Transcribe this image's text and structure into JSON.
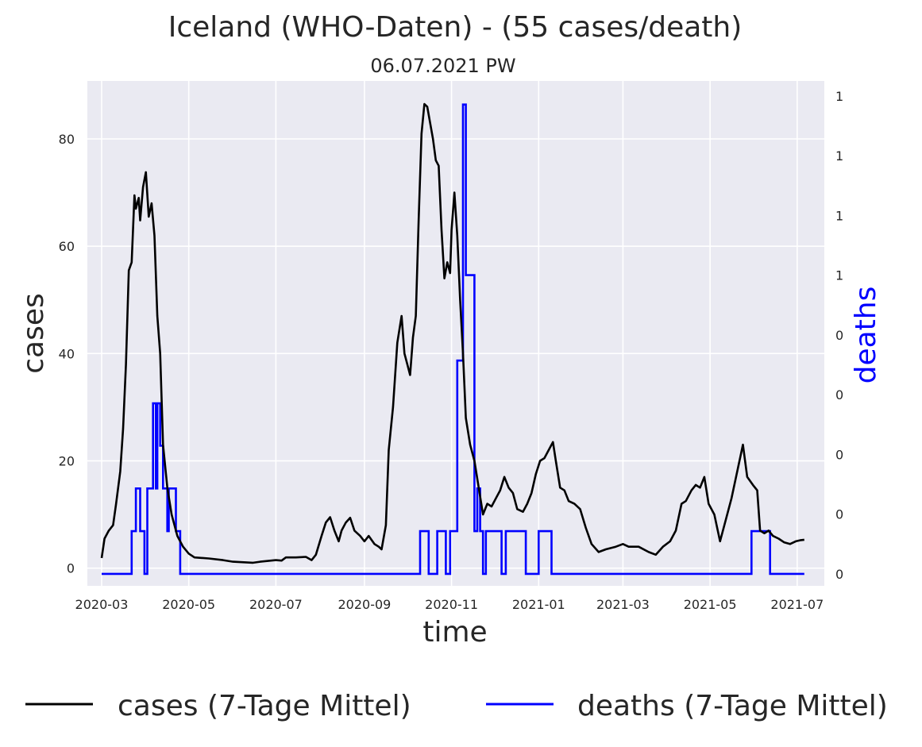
{
  "title": "Iceland (WHO-Daten) - (55 cases/death)",
  "subtitle": "06.07.2021 PW",
  "chart_data": {
    "type": "line",
    "xlabel": "time",
    "ylabel": "cases",
    "y2label": "deaths",
    "x_ticks": [
      "2020-03",
      "2020-05",
      "2020-07",
      "2020-09",
      "2020-11",
      "2021-01",
      "2021-03",
      "2021-05",
      "2021-07"
    ],
    "y_ticks": [
      "0",
      "20",
      "40",
      "60",
      "80"
    ],
    "y2_ticks": [
      "0",
      "0",
      "0",
      "0",
      "0",
      "1",
      "1",
      "1",
      "1"
    ],
    "xlim": [
      "2020-02-20",
      "2021-07-20"
    ],
    "ylim": [
      -3.3,
      90.8
    ],
    "y2lim": [
      -0.04,
      1.65
    ],
    "grid": true,
    "legend": {
      "placement": "bottom-center",
      "entries": [
        "cases (7-Tage Mittel)",
        "deaths (7-Tage Mittel)"
      ]
    },
    "series": [
      {
        "name": "cases (7-Tage Mittel)",
        "axis": "left",
        "color": "#000000",
        "points": [
          [
            "2020-03-01",
            1.9
          ],
          [
            "2020-03-03",
            5.5
          ],
          [
            "2020-03-06",
            7.0
          ],
          [
            "2020-03-09",
            8.0
          ],
          [
            "2020-03-11",
            11.8
          ],
          [
            "2020-03-14",
            18.0
          ],
          [
            "2020-03-16",
            26.0
          ],
          [
            "2020-03-18",
            38.0
          ],
          [
            "2020-03-20",
            55.5
          ],
          [
            "2020-03-22",
            57.0
          ],
          [
            "2020-03-24",
            69.5
          ],
          [
            "2020-03-25",
            67.0
          ],
          [
            "2020-03-27",
            69.0
          ],
          [
            "2020-03-28",
            64.8
          ],
          [
            "2020-03-30",
            71.0
          ],
          [
            "2020-04-01",
            73.8
          ],
          [
            "2020-04-03",
            65.5
          ],
          [
            "2020-04-05",
            68.0
          ],
          [
            "2020-04-07",
            62.0
          ],
          [
            "2020-04-09",
            47.0
          ],
          [
            "2020-04-11",
            40.0
          ],
          [
            "2020-04-13",
            23.0
          ],
          [
            "2020-04-16",
            15.0
          ],
          [
            "2020-04-19",
            10.0
          ],
          [
            "2020-04-23",
            6.0
          ],
          [
            "2020-04-27",
            4.0
          ],
          [
            "2020-05-01",
            2.7
          ],
          [
            "2020-05-05",
            2.0
          ],
          [
            "2020-05-15",
            1.8
          ],
          [
            "2020-05-25",
            1.5
          ],
          [
            "2020-06-01",
            1.2
          ],
          [
            "2020-06-15",
            1.0
          ],
          [
            "2020-06-20",
            1.2
          ],
          [
            "2020-07-01",
            1.5
          ],
          [
            "2020-07-05",
            1.4
          ],
          [
            "2020-07-08",
            2.0
          ],
          [
            "2020-07-15",
            2.0
          ],
          [
            "2020-07-22",
            2.1
          ],
          [
            "2020-07-26",
            1.5
          ],
          [
            "2020-07-29",
            2.5
          ],
          [
            "2020-08-02",
            6.0
          ],
          [
            "2020-08-05",
            8.5
          ],
          [
            "2020-08-08",
            9.5
          ],
          [
            "2020-08-11",
            7.0
          ],
          [
            "2020-08-14",
            5.0
          ],
          [
            "2020-08-16",
            7.0
          ],
          [
            "2020-08-19",
            8.5
          ],
          [
            "2020-08-22",
            9.4
          ],
          [
            "2020-08-25",
            7.0
          ],
          [
            "2020-08-29",
            6.0
          ],
          [
            "2020-09-01",
            5.0
          ],
          [
            "2020-09-04",
            6.0
          ],
          [
            "2020-09-08",
            4.5
          ],
          [
            "2020-09-11",
            4.0
          ],
          [
            "2020-09-13",
            3.5
          ],
          [
            "2020-09-16",
            8.0
          ],
          [
            "2020-09-18",
            22.0
          ],
          [
            "2020-09-21",
            30.0
          ],
          [
            "2020-09-24",
            42.0
          ],
          [
            "2020-09-27",
            47.0
          ],
          [
            "2020-09-29",
            40.0
          ],
          [
            "2020-10-01",
            38.0
          ],
          [
            "2020-10-03",
            36.0
          ],
          [
            "2020-10-05",
            43.0
          ],
          [
            "2020-10-07",
            47.0
          ],
          [
            "2020-10-09",
            65.0
          ],
          [
            "2020-10-11",
            81.0
          ],
          [
            "2020-10-13",
            86.5
          ],
          [
            "2020-10-15",
            86.0
          ],
          [
            "2020-10-17",
            83.0
          ],
          [
            "2020-10-19",
            80.0
          ],
          [
            "2020-10-21",
            76.0
          ],
          [
            "2020-10-23",
            75.0
          ],
          [
            "2020-10-25",
            63.0
          ],
          [
            "2020-10-27",
            54.0
          ],
          [
            "2020-10-29",
            57.0
          ],
          [
            "2020-10-31",
            55.0
          ],
          [
            "2020-11-01",
            63.0
          ],
          [
            "2020-11-03",
            70.0
          ],
          [
            "2020-11-05",
            62.0
          ],
          [
            "2020-11-07",
            50.0
          ],
          [
            "2020-11-09",
            40.0
          ],
          [
            "2020-11-11",
            28.0
          ],
          [
            "2020-11-14",
            23.0
          ],
          [
            "2020-11-17",
            20.0
          ],
          [
            "2020-11-20",
            15.0
          ],
          [
            "2020-11-23",
            10.0
          ],
          [
            "2020-11-26",
            12.0
          ],
          [
            "2020-11-29",
            11.5
          ],
          [
            "2020-12-02",
            13.0
          ],
          [
            "2020-12-05",
            14.5
          ],
          [
            "2020-12-08",
            17.0
          ],
          [
            "2020-12-11",
            15.0
          ],
          [
            "2020-12-14",
            14.0
          ],
          [
            "2020-12-17",
            11.0
          ],
          [
            "2020-12-21",
            10.5
          ],
          [
            "2020-12-24",
            12.0
          ],
          [
            "2020-12-27",
            14.0
          ],
          [
            "2020-12-30",
            17.5
          ],
          [
            "2021-01-02",
            20.0
          ],
          [
            "2021-01-05",
            20.5
          ],
          [
            "2021-01-09",
            22.5
          ],
          [
            "2021-01-11",
            23.5
          ],
          [
            "2021-01-13",
            20.0
          ],
          [
            "2021-01-16",
            15.0
          ],
          [
            "2021-01-19",
            14.5
          ],
          [
            "2021-01-22",
            12.5
          ],
          [
            "2021-01-26",
            12.0
          ],
          [
            "2021-01-30",
            11.0
          ],
          [
            "2021-02-03",
            7.5
          ],
          [
            "2021-02-07",
            4.5
          ],
          [
            "2021-02-12",
            3.0
          ],
          [
            "2021-02-17",
            3.5
          ],
          [
            "2021-02-24",
            4.0
          ],
          [
            "2021-03-01",
            4.5
          ],
          [
            "2021-03-05",
            4.0
          ],
          [
            "2021-03-12",
            4.0
          ],
          [
            "2021-03-19",
            3.0
          ],
          [
            "2021-03-24",
            2.5
          ],
          [
            "2021-03-29",
            4.0
          ],
          [
            "2021-04-03",
            5.0
          ],
          [
            "2021-04-07",
            7.0
          ],
          [
            "2021-04-11",
            12.0
          ],
          [
            "2021-04-14",
            12.5
          ],
          [
            "2021-04-18",
            14.5
          ],
          [
            "2021-04-21",
            15.5
          ],
          [
            "2021-04-24",
            15.0
          ],
          [
            "2021-04-27",
            17.0
          ],
          [
            "2021-04-30",
            12.0
          ],
          [
            "2021-05-04",
            10.0
          ],
          [
            "2021-05-08",
            5.0
          ],
          [
            "2021-05-12",
            9.0
          ],
          [
            "2021-05-16",
            13.0
          ],
          [
            "2021-05-20",
            18.0
          ],
          [
            "2021-05-24",
            23.0
          ],
          [
            "2021-05-27",
            17.0
          ],
          [
            "2021-05-31",
            15.5
          ],
          [
            "2021-06-03",
            14.5
          ],
          [
            "2021-06-05",
            7.0
          ],
          [
            "2021-06-08",
            6.5
          ],
          [
            "2021-06-11",
            7.0
          ],
          [
            "2021-06-14",
            6.0
          ],
          [
            "2021-06-18",
            5.5
          ],
          [
            "2021-06-22",
            4.8
          ],
          [
            "2021-06-26",
            4.5
          ],
          [
            "2021-06-30",
            5.0
          ],
          [
            "2021-07-03",
            5.2
          ],
          [
            "2021-07-06",
            5.3
          ]
        ]
      },
      {
        "name": "deaths (7-Tage Mittel)",
        "axis": "right",
        "color": "#0000ff",
        "steps": [
          [
            "2020-03-01",
            0.0
          ],
          [
            "2020-03-22",
            0.143
          ],
          [
            "2020-03-25",
            0.286
          ],
          [
            "2020-03-28",
            0.143
          ],
          [
            "2020-03-31",
            0.0
          ],
          [
            "2020-04-02",
            0.286
          ],
          [
            "2020-04-06",
            0.571
          ],
          [
            "2020-04-08",
            0.286
          ],
          [
            "2020-04-09",
            0.571
          ],
          [
            "2020-04-11",
            0.429
          ],
          [
            "2020-04-13",
            0.286
          ],
          [
            "2020-04-16",
            0.143
          ],
          [
            "2020-04-17",
            0.286
          ],
          [
            "2020-04-22",
            0.143
          ],
          [
            "2020-04-25",
            0.0
          ],
          [
            "2020-10-10",
            0.143
          ],
          [
            "2020-10-16",
            0.0
          ],
          [
            "2020-10-22",
            0.143
          ],
          [
            "2020-10-28",
            0.0
          ],
          [
            "2020-10-31",
            0.143
          ],
          [
            "2020-11-05",
            0.714
          ],
          [
            "2020-11-09",
            1.571
          ],
          [
            "2020-11-11",
            1.0
          ],
          [
            "2020-11-17",
            0.143
          ],
          [
            "2020-11-19",
            0.286
          ],
          [
            "2020-11-21",
            0.143
          ],
          [
            "2020-11-23",
            0.0
          ],
          [
            "2020-11-25",
            0.143
          ],
          [
            "2020-12-06",
            0.0
          ],
          [
            "2020-12-09",
            0.143
          ],
          [
            "2020-12-23",
            0.0
          ],
          [
            "2021-01-01",
            0.143
          ],
          [
            "2021-01-10",
            0.0
          ],
          [
            "2021-05-30",
            0.143
          ],
          [
            "2021-06-12",
            0.0
          ],
          [
            "2021-07-06",
            0.0
          ]
        ]
      }
    ]
  }
}
